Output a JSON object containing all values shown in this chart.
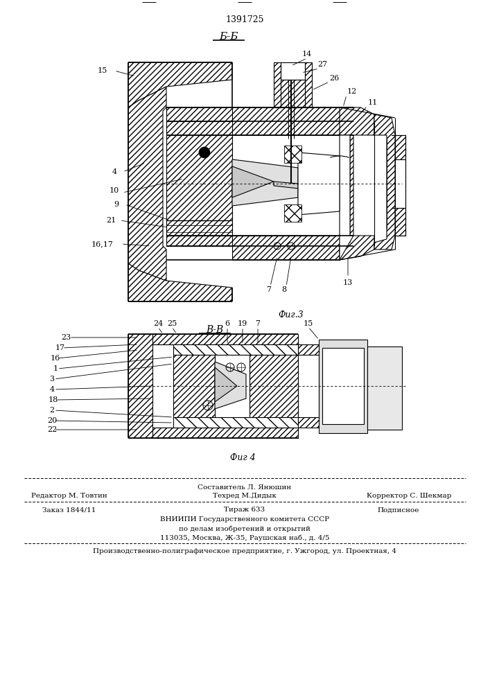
{
  "patent_number": "1391725",
  "fig3_label": "Б-Б",
  "fig4_label": "В-В",
  "fig3_caption": "Фиг.3",
  "fig4_caption": "Фиг 4",
  "footer": {
    "line1_center_top": "Составитель Л. Янюшин",
    "line1_left": "Редактор М. Товтин",
    "line1_center_bot": "Техред М.Дидык",
    "line1_right": "Корректор С. Шекмар",
    "line2_left": "Заказ 1844/11",
    "line2_center": "Тираж 633",
    "line2_right": "Подписное",
    "line3": "ВНИИПИ Государственного комитета СССР",
    "line4": "по делам изобретений и открытий",
    "line5": "113035, Москва, Ж-35, Раушская наб., д. 4/5",
    "line6": "Производственно-полиграфическое предприятие, г. Ужгород, ул. Проектная, 4"
  },
  "bg_color": "#ffffff"
}
